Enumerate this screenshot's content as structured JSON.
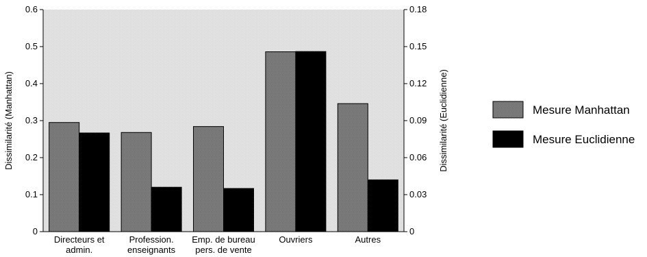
{
  "chart_data": {
    "type": "bar",
    "categories": [
      [
        "Directeurs et",
        "admin."
      ],
      [
        "Profession.",
        "enseignants"
      ],
      [
        "Emp. de bureau",
        "pers. de vente"
      ],
      [
        "Ouvriers"
      ],
      [
        "Autres"
      ]
    ],
    "series": [
      {
        "name": "Mesure Manhattan",
        "axis": "left",
        "values": [
          0.295,
          0.268,
          0.284,
          0.486,
          0.346
        ],
        "color": "#7a7a7a"
      },
      {
        "name": "Mesure Euclidienne",
        "axis": "right",
        "values": [
          0.08,
          0.036,
          0.035,
          0.146,
          0.042
        ],
        "color": "#000000"
      }
    ],
    "ylabel": "Dissimilarité (Manhattan)",
    "ylabel_right": "Dissimilarité (Euclidienne)",
    "ylim": [
      0,
      0.6
    ],
    "ylim_right": [
      0,
      0.18
    ],
    "yticks": [
      "0",
      "0.1",
      "0.2",
      "0.3",
      "0.4",
      "0.5",
      "0.6"
    ],
    "yticks_right": [
      "0",
      "0.03",
      "0.06",
      "0.09",
      "0.12",
      "0.15",
      "0.18"
    ],
    "legend_position": "right",
    "plot_background": "#e6e6e6"
  }
}
